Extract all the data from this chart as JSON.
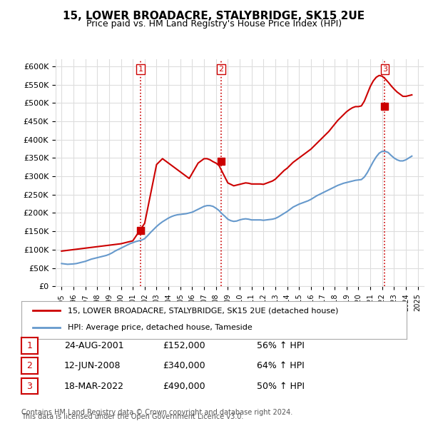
{
  "title": "15, LOWER BROADACRE, STALYBRIDGE, SK15 2UE",
  "subtitle": "Price paid vs. HM Land Registry's House Price Index (HPI)",
  "footer1": "Contains HM Land Registry data © Crown copyright and database right 2024.",
  "footer2": "This data is licensed under the Open Government Licence v3.0.",
  "legend_line1": "15, LOWER BROADACRE, STALYBRIDGE, SK15 2UE (detached house)",
  "legend_line2": "HPI: Average price, detached house, Tameside",
  "transactions": [
    {
      "num": 1,
      "date": "24-AUG-2001",
      "price": "£152,000",
      "hpi": "56% ↑ HPI"
    },
    {
      "num": 2,
      "date": "12-JUN-2008",
      "price": "£340,000",
      "hpi": "64% ↑ HPI"
    },
    {
      "num": 3,
      "date": "18-MAR-2022",
      "price": "£490,000",
      "hpi": "50% ↑ HPI"
    }
  ],
  "sale_dates": [
    2001.646,
    2008.443,
    2022.21
  ],
  "sale_prices": [
    152000,
    340000,
    490000
  ],
  "hpi_color": "#6699cc",
  "price_color": "#cc0000",
  "vline_color": "#cc0000",
  "vline_style": "dotted",
  "marker_color": "#cc0000",
  "ylim": [
    0,
    620000
  ],
  "xlim": [
    1994.5,
    2025.5
  ],
  "yticks": [
    0,
    50000,
    100000,
    150000,
    200000,
    250000,
    300000,
    350000,
    400000,
    450000,
    500000,
    550000,
    600000
  ],
  "xticks": [
    1995,
    1996,
    1997,
    1998,
    1999,
    2000,
    2001,
    2002,
    2003,
    2004,
    2005,
    2006,
    2007,
    2008,
    2009,
    2010,
    2011,
    2012,
    2013,
    2014,
    2015,
    2016,
    2017,
    2018,
    2019,
    2020,
    2021,
    2022,
    2023,
    2024,
    2025
  ],
  "bg_color": "#ffffff",
  "grid_color": "#dddddd",
  "hpi_data_x": [
    1995.0,
    1995.25,
    1995.5,
    1995.75,
    1996.0,
    1996.25,
    1996.5,
    1996.75,
    1997.0,
    1997.25,
    1997.5,
    1997.75,
    1998.0,
    1998.25,
    1998.5,
    1998.75,
    1999.0,
    1999.25,
    1999.5,
    1999.75,
    2000.0,
    2000.25,
    2000.5,
    2000.75,
    2001.0,
    2001.25,
    2001.5,
    2001.75,
    2002.0,
    2002.25,
    2002.5,
    2002.75,
    2003.0,
    2003.25,
    2003.5,
    2003.75,
    2004.0,
    2004.25,
    2004.5,
    2004.75,
    2005.0,
    2005.25,
    2005.5,
    2005.75,
    2006.0,
    2006.25,
    2006.5,
    2006.75,
    2007.0,
    2007.25,
    2007.5,
    2007.75,
    2008.0,
    2008.25,
    2008.5,
    2008.75,
    2009.0,
    2009.25,
    2009.5,
    2009.75,
    2010.0,
    2010.25,
    2010.5,
    2010.75,
    2011.0,
    2011.25,
    2011.5,
    2011.75,
    2012.0,
    2012.25,
    2012.5,
    2012.75,
    2013.0,
    2013.25,
    2013.5,
    2013.75,
    2014.0,
    2014.25,
    2014.5,
    2014.75,
    2015.0,
    2015.25,
    2015.5,
    2015.75,
    2016.0,
    2016.25,
    2016.5,
    2016.75,
    2017.0,
    2017.25,
    2017.5,
    2017.75,
    2018.0,
    2018.25,
    2018.5,
    2018.75,
    2019.0,
    2019.25,
    2019.5,
    2019.75,
    2020.0,
    2020.25,
    2020.5,
    2020.75,
    2021.0,
    2021.25,
    2021.5,
    2021.75,
    2022.0,
    2022.25,
    2022.5,
    2022.75,
    2023.0,
    2023.25,
    2023.5,
    2023.75,
    2024.0,
    2024.25,
    2024.5
  ],
  "hpi_data_y": [
    62000,
    61000,
    60000,
    60500,
    61000,
    62000,
    64000,
    66000,
    68000,
    71000,
    74000,
    76000,
    78000,
    80000,
    82000,
    84000,
    87000,
    91000,
    96000,
    100000,
    104000,
    108000,
    112000,
    116000,
    119000,
    122000,
    124000,
    126000,
    130000,
    138000,
    147000,
    155000,
    163000,
    170000,
    176000,
    181000,
    186000,
    190000,
    193000,
    195000,
    196000,
    197000,
    198000,
    200000,
    202000,
    206000,
    210000,
    214000,
    218000,
    220000,
    220000,
    218000,
    213000,
    207000,
    198000,
    191000,
    183000,
    179000,
    177000,
    178000,
    181000,
    183000,
    184000,
    183000,
    181000,
    181000,
    181000,
    181000,
    180000,
    181000,
    182000,
    183000,
    185000,
    189000,
    194000,
    199000,
    204000,
    210000,
    216000,
    220000,
    224000,
    227000,
    230000,
    233000,
    237000,
    242000,
    247000,
    251000,
    255000,
    259000,
    263000,
    267000,
    271000,
    275000,
    278000,
    281000,
    283000,
    285000,
    287000,
    289000,
    290000,
    291000,
    298000,
    310000,
    325000,
    340000,
    353000,
    363000,
    368000,
    368000,
    365000,
    357000,
    350000,
    345000,
    342000,
    342000,
    345000,
    350000,
    355000
  ],
  "price_data_x": [
    1995.0,
    1995.25,
    1995.5,
    1995.75,
    1996.0,
    1996.25,
    1996.5,
    1996.75,
    1997.0,
    1997.25,
    1997.5,
    1997.75,
    1998.0,
    1998.25,
    1998.5,
    1998.75,
    1999.0,
    1999.25,
    1999.5,
    1999.75,
    2000.0,
    2000.25,
    2000.5,
    2000.75,
    2001.0,
    2001.25,
    2001.5,
    2001.75,
    2002.0,
    2002.25,
    2002.5,
    2002.75,
    2003.0,
    2003.25,
    2003.5,
    2003.75,
    2004.0,
    2004.25,
    2004.5,
    2004.75,
    2005.0,
    2005.25,
    2005.5,
    2005.75,
    2006.0,
    2006.25,
    2006.5,
    2006.75,
    2007.0,
    2007.25,
    2007.5,
    2007.75,
    2008.0,
    2008.25,
    2008.5,
    2008.75,
    2009.0,
    2009.25,
    2009.5,
    2009.75,
    2010.0,
    2010.25,
    2010.5,
    2010.75,
    2011.0,
    2011.25,
    2011.5,
    2011.75,
    2012.0,
    2012.25,
    2012.5,
    2012.75,
    2013.0,
    2013.25,
    2013.5,
    2013.75,
    2014.0,
    2014.25,
    2014.5,
    2014.75,
    2015.0,
    2015.25,
    2015.5,
    2015.75,
    2016.0,
    2016.25,
    2016.5,
    2016.75,
    2017.0,
    2017.25,
    2017.5,
    2017.75,
    2018.0,
    2018.25,
    2018.5,
    2018.75,
    2019.0,
    2019.25,
    2019.5,
    2019.75,
    2020.0,
    2020.25,
    2020.5,
    2020.75,
    2021.0,
    2021.25,
    2021.5,
    2021.75,
    2022.0,
    2022.25,
    2022.5,
    2022.75,
    2023.0,
    2023.25,
    2023.5,
    2023.75,
    2024.0,
    2024.25,
    2024.5
  ],
  "price_data_y": [
    96000,
    97000,
    98000,
    99000,
    100000,
    101000,
    102000,
    103000,
    104000,
    105000,
    106000,
    107000,
    108000,
    109000,
    110000,
    111000,
    112000,
    113000,
    114000,
    115000,
    116000,
    118000,
    120000,
    122000,
    124000,
    136000,
    148000,
    160000,
    172000,
    212000,
    252000,
    292000,
    332000,
    340000,
    348000,
    342000,
    336000,
    330000,
    324000,
    318000,
    312000,
    306000,
    300000,
    294000,
    308000,
    322000,
    336000,
    342000,
    348000,
    348000,
    345000,
    340000,
    336000,
    330000,
    314000,
    298000,
    282000,
    278000,
    274000,
    276000,
    278000,
    280000,
    282000,
    281000,
    279000,
    279000,
    279000,
    279000,
    278000,
    281000,
    284000,
    287000,
    292000,
    300000,
    308000,
    316000,
    322000,
    330000,
    338000,
    344000,
    350000,
    356000,
    362000,
    368000,
    374000,
    382000,
    390000,
    398000,
    406000,
    414000,
    422000,
    432000,
    442000,
    452000,
    460000,
    468000,
    476000,
    482000,
    487000,
    490000,
    490000,
    492000,
    505000,
    525000,
    545000,
    560000,
    570000,
    575000,
    573000,
    566000,
    557000,
    547000,
    538000,
    530000,
    524000,
    518000,
    518000,
    520000,
    522000
  ]
}
